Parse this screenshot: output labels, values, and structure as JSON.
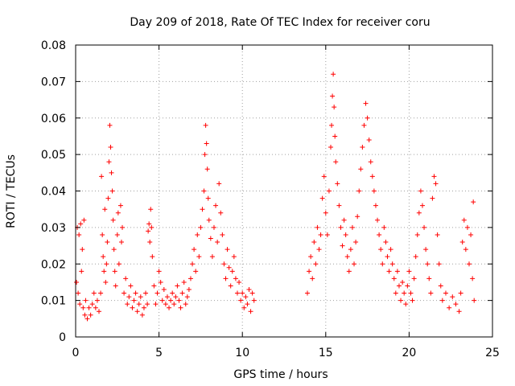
{
  "chart_data": {
    "type": "scatter",
    "title": "Day 209 of 2018, Rate Of TEC Index for receiver coru",
    "xlabel": "GPS time / hours",
    "ylabel": "ROTI / TECUs",
    "xlim": [
      0,
      25
    ],
    "ylim": [
      0,
      0.08
    ],
    "xticks": [
      0,
      5,
      10,
      15,
      20,
      25
    ],
    "yticks": [
      0,
      0.01,
      0.02,
      0.03,
      0.04,
      0.05,
      0.06,
      0.07,
      0.08
    ],
    "xtick_labels": [
      "0",
      "5",
      "10",
      "15",
      "20",
      "25"
    ],
    "ytick_labels": [
      "0",
      "0.01",
      "0.02",
      "0.03",
      "0.04",
      "0.05",
      "0.06",
      "0.07",
      "0.08"
    ],
    "grid": true,
    "marker": "+",
    "color": "#ff0000",
    "series": [
      {
        "points": [
          [
            0.05,
            0.015
          ],
          [
            0.1,
            0.03
          ],
          [
            0.15,
            0.012
          ],
          [
            0.2,
            0.028
          ],
          [
            0.25,
            0.009
          ],
          [
            0.3,
            0.031
          ],
          [
            0.35,
            0.018
          ],
          [
            0.4,
            0.024
          ],
          [
            0.45,
            0.008
          ],
          [
            0.5,
            0.032
          ],
          [
            0.55,
            0.006
          ],
          [
            0.6,
            0.01
          ],
          [
            0.7,
            0.005
          ],
          [
            0.8,
            0.008
          ],
          [
            0.9,
            0.006
          ],
          [
            1.0,
            0.009
          ],
          [
            1.1,
            0.012
          ],
          [
            1.2,
            0.008
          ],
          [
            1.3,
            0.01
          ],
          [
            1.4,
            0.007
          ],
          [
            1.5,
            0.012
          ],
          [
            1.55,
            0.044
          ],
          [
            1.6,
            0.028
          ],
          [
            1.65,
            0.022
          ],
          [
            1.7,
            0.018
          ],
          [
            1.75,
            0.035
          ],
          [
            1.8,
            0.015
          ],
          [
            1.85,
            0.02
          ],
          [
            1.9,
            0.026
          ],
          [
            1.95,
            0.038
          ],
          [
            2.0,
            0.048
          ],
          [
            2.05,
            0.058
          ],
          [
            2.1,
            0.052
          ],
          [
            2.15,
            0.045
          ],
          [
            2.2,
            0.04
          ],
          [
            2.25,
            0.032
          ],
          [
            2.3,
            0.024
          ],
          [
            2.35,
            0.018
          ],
          [
            2.4,
            0.014
          ],
          [
            2.5,
            0.028
          ],
          [
            2.55,
            0.034
          ],
          [
            2.6,
            0.02
          ],
          [
            2.7,
            0.036
          ],
          [
            2.75,
            0.026
          ],
          [
            2.8,
            0.03
          ],
          [
            2.9,
            0.012
          ],
          [
            3.0,
            0.016
          ],
          [
            3.1,
            0.009
          ],
          [
            3.2,
            0.011
          ],
          [
            3.3,
            0.014
          ],
          [
            3.4,
            0.008
          ],
          [
            3.5,
            0.01
          ],
          [
            3.6,
            0.012
          ],
          [
            3.7,
            0.007
          ],
          [
            3.8,
            0.009
          ],
          [
            3.9,
            0.011
          ],
          [
            4.0,
            0.006
          ],
          [
            4.1,
            0.008
          ],
          [
            4.2,
            0.012
          ],
          [
            4.3,
            0.009
          ],
          [
            4.35,
            0.029
          ],
          [
            4.4,
            0.031
          ],
          [
            4.45,
            0.026
          ],
          [
            4.5,
            0.035
          ],
          [
            4.55,
            0.03
          ],
          [
            4.6,
            0.022
          ],
          [
            4.7,
            0.014
          ],
          [
            4.8,
            0.009
          ],
          [
            4.9,
            0.012
          ],
          [
            5.0,
            0.018
          ],
          [
            5.1,
            0.015
          ],
          [
            5.2,
            0.01
          ],
          [
            5.3,
            0.013
          ],
          [
            5.4,
            0.009
          ],
          [
            5.5,
            0.011
          ],
          [
            5.6,
            0.008
          ],
          [
            5.7,
            0.01
          ],
          [
            5.8,
            0.012
          ],
          [
            5.9,
            0.009
          ],
          [
            6.0,
            0.011
          ],
          [
            6.1,
            0.014
          ],
          [
            6.2,
            0.01
          ],
          [
            6.3,
            0.008
          ],
          [
            6.4,
            0.012
          ],
          [
            6.5,
            0.015
          ],
          [
            6.6,
            0.009
          ],
          [
            6.7,
            0.011
          ],
          [
            6.8,
            0.013
          ],
          [
            6.9,
            0.016
          ],
          [
            7.0,
            0.02
          ],
          [
            7.1,
            0.024
          ],
          [
            7.2,
            0.018
          ],
          [
            7.3,
            0.028
          ],
          [
            7.4,
            0.022
          ],
          [
            7.5,
            0.03
          ],
          [
            7.6,
            0.035
          ],
          [
            7.7,
            0.04
          ],
          [
            7.75,
            0.05
          ],
          [
            7.8,
            0.058
          ],
          [
            7.85,
            0.053
          ],
          [
            7.9,
            0.046
          ],
          [
            7.95,
            0.038
          ],
          [
            8.0,
            0.032
          ],
          [
            8.1,
            0.027
          ],
          [
            8.2,
            0.022
          ],
          [
            8.3,
            0.03
          ],
          [
            8.4,
            0.036
          ],
          [
            8.5,
            0.026
          ],
          [
            8.6,
            0.042
          ],
          [
            8.7,
            0.034
          ],
          [
            8.8,
            0.028
          ],
          [
            8.9,
            0.02
          ],
          [
            9.0,
            0.016
          ],
          [
            9.1,
            0.024
          ],
          [
            9.2,
            0.019
          ],
          [
            9.3,
            0.014
          ],
          [
            9.4,
            0.018
          ],
          [
            9.5,
            0.022
          ],
          [
            9.6,
            0.016
          ],
          [
            9.7,
            0.012
          ],
          [
            9.8,
            0.015
          ],
          [
            9.9,
            0.01
          ],
          [
            10.0,
            0.012
          ],
          [
            10.1,
            0.008
          ],
          [
            10.2,
            0.011
          ],
          [
            10.3,
            0.009
          ],
          [
            10.4,
            0.013
          ],
          [
            10.5,
            0.007
          ],
          [
            10.6,
            0.012
          ],
          [
            10.7,
            0.01
          ],
          [
            13.9,
            0.012
          ],
          [
            14.0,
            0.018
          ],
          [
            14.1,
            0.022
          ],
          [
            14.2,
            0.016
          ],
          [
            14.3,
            0.026
          ],
          [
            14.4,
            0.02
          ],
          [
            14.5,
            0.03
          ],
          [
            14.6,
            0.024
          ],
          [
            14.7,
            0.028
          ],
          [
            14.8,
            0.038
          ],
          [
            14.9,
            0.044
          ],
          [
            15.0,
            0.034
          ],
          [
            15.1,
            0.028
          ],
          [
            15.2,
            0.04
          ],
          [
            15.3,
            0.052
          ],
          [
            15.35,
            0.058
          ],
          [
            15.4,
            0.066
          ],
          [
            15.45,
            0.072
          ],
          [
            15.5,
            0.063
          ],
          [
            15.55,
            0.055
          ],
          [
            15.6,
            0.048
          ],
          [
            15.7,
            0.042
          ],
          [
            15.8,
            0.036
          ],
          [
            15.9,
            0.03
          ],
          [
            16.0,
            0.025
          ],
          [
            16.1,
            0.032
          ],
          [
            16.2,
            0.028
          ],
          [
            16.3,
            0.022
          ],
          [
            16.4,
            0.018
          ],
          [
            16.5,
            0.024
          ],
          [
            16.6,
            0.03
          ],
          [
            16.7,
            0.02
          ],
          [
            16.8,
            0.026
          ],
          [
            16.9,
            0.033
          ],
          [
            17.0,
            0.04
          ],
          [
            17.1,
            0.046
          ],
          [
            17.2,
            0.052
          ],
          [
            17.3,
            0.058
          ],
          [
            17.4,
            0.064
          ],
          [
            17.5,
            0.06
          ],
          [
            17.6,
            0.054
          ],
          [
            17.7,
            0.048
          ],
          [
            17.8,
            0.044
          ],
          [
            17.9,
            0.04
          ],
          [
            18.0,
            0.036
          ],
          [
            18.1,
            0.032
          ],
          [
            18.2,
            0.028
          ],
          [
            18.3,
            0.024
          ],
          [
            18.4,
            0.02
          ],
          [
            18.5,
            0.03
          ],
          [
            18.6,
            0.026
          ],
          [
            18.7,
            0.022
          ],
          [
            18.8,
            0.018
          ],
          [
            18.9,
            0.024
          ],
          [
            19.0,
            0.02
          ],
          [
            19.1,
            0.016
          ],
          [
            19.2,
            0.012
          ],
          [
            19.3,
            0.018
          ],
          [
            19.4,
            0.014
          ],
          [
            19.5,
            0.01
          ],
          [
            19.6,
            0.015
          ],
          [
            19.7,
            0.012
          ],
          [
            19.8,
            0.009
          ],
          [
            19.9,
            0.014
          ],
          [
            20.0,
            0.018
          ],
          [
            20.1,
            0.012
          ],
          [
            20.2,
            0.01
          ],
          [
            20.3,
            0.016
          ],
          [
            20.4,
            0.022
          ],
          [
            20.5,
            0.028
          ],
          [
            20.6,
            0.034
          ],
          [
            20.7,
            0.04
          ],
          [
            20.8,
            0.036
          ],
          [
            20.9,
            0.03
          ],
          [
            21.0,
            0.024
          ],
          [
            21.1,
            0.02
          ],
          [
            21.2,
            0.016
          ],
          [
            21.3,
            0.012
          ],
          [
            21.4,
            0.038
          ],
          [
            21.5,
            0.044
          ],
          [
            21.6,
            0.042
          ],
          [
            21.7,
            0.028
          ],
          [
            21.8,
            0.02
          ],
          [
            21.9,
            0.014
          ],
          [
            22.0,
            0.01
          ],
          [
            22.2,
            0.012
          ],
          [
            22.4,
            0.008
          ],
          [
            22.6,
            0.011
          ],
          [
            22.8,
            0.009
          ],
          [
            23.0,
            0.007
          ],
          [
            23.1,
            0.012
          ],
          [
            23.2,
            0.026
          ],
          [
            23.3,
            0.032
          ],
          [
            23.4,
            0.024
          ],
          [
            23.5,
            0.03
          ],
          [
            23.6,
            0.02
          ],
          [
            23.7,
            0.028
          ],
          [
            23.8,
            0.016
          ],
          [
            23.85,
            0.037
          ],
          [
            23.9,
            0.01
          ]
        ]
      }
    ]
  }
}
